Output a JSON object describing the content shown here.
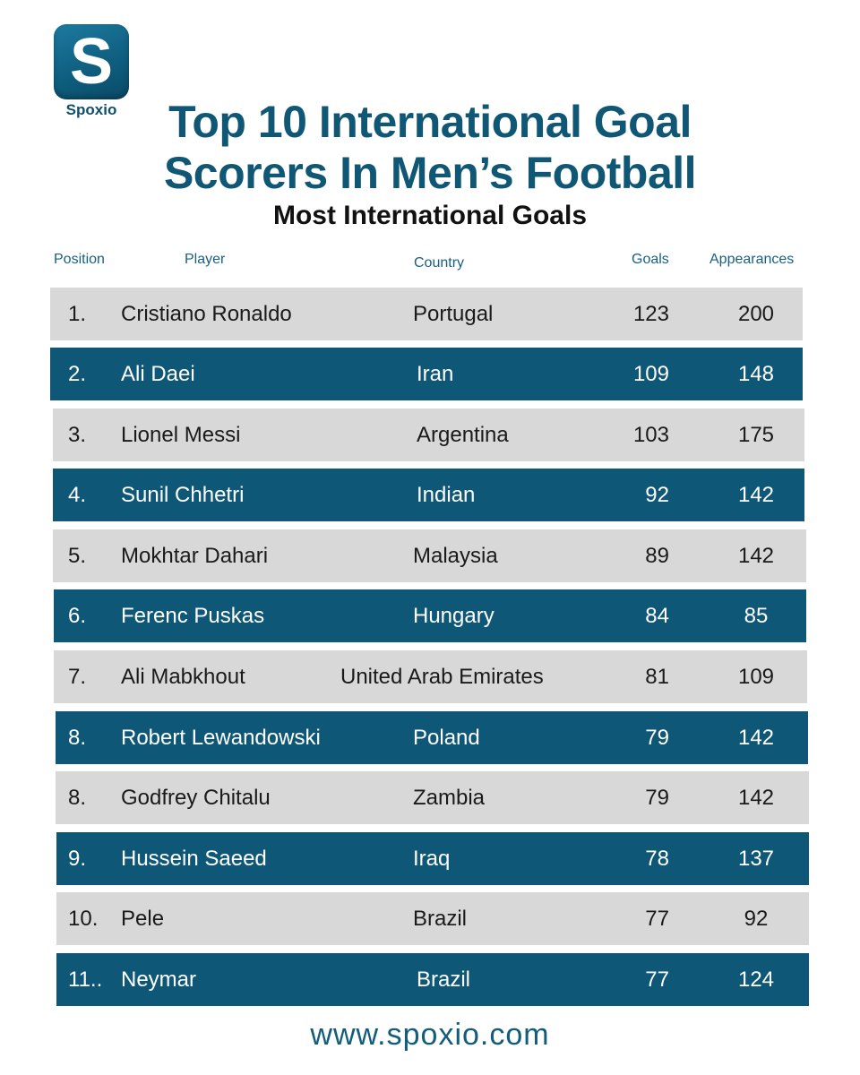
{
  "brand": {
    "logo_letter": "S",
    "name": "Spoxio"
  },
  "title": {
    "line1": "Top 10 International Goal",
    "line2": "Scorers In Men’s Football"
  },
  "subtitle": "Most International Goals",
  "columns": {
    "position": "Position",
    "player": "Player",
    "country": "Country",
    "goals": "Goals",
    "appearances": "Appearances"
  },
  "rows": [
    {
      "position": "1.",
      "player": "Cristiano Ronaldo",
      "country": "Portugal",
      "goals": "123",
      "appearances": "200"
    },
    {
      "position": "2.",
      "player": "Ali Daei",
      "country": "Iran",
      "goals": "109",
      "appearances": "148"
    },
    {
      "position": "3.",
      "player": "Lionel Messi",
      "country": "Argentina",
      "goals": "103",
      "appearances": "175"
    },
    {
      "position": "4.",
      "player": "Sunil Chhetri",
      "country": "Indian",
      "goals": "92",
      "appearances": "142"
    },
    {
      "position": "5.",
      "player": "Mokhtar Dahari",
      "country": "Malaysia",
      "goals": "89",
      "appearances": "142"
    },
    {
      "position": "6.",
      "player": "Ferenc Puskas",
      "country": "Hungary",
      "goals": "84",
      "appearances": "85"
    },
    {
      "position": "7.",
      "player": "Ali Mabkhout",
      "country": "United Arab Emirates",
      "goals": "81",
      "appearances": "109"
    },
    {
      "position": "8.",
      "player": "Robert Lewandowski",
      "country": "Poland",
      "goals": "79",
      "appearances": "142"
    },
    {
      "position": "8.",
      "player": "Godfrey Chitalu",
      "country": "Zambia",
      "goals": "79",
      "appearances": "142"
    },
    {
      "position": "9.",
      "player": "Hussein Saeed",
      "country": "Iraq",
      "goals": "78",
      "appearances": "137"
    },
    {
      "position": "10.",
      "player": "Pele",
      "country": "Brazil",
      "goals": "77",
      "appearances": "92"
    },
    {
      "position": "11..",
      "player": "Neymar",
      "country": "Brazil",
      "goals": "77",
      "appearances": "124"
    }
  ],
  "footer": "www.spoxio.com",
  "colors": {
    "dark_row": "#0e5777",
    "light_row": "#d8d8d8",
    "title": "#0f5775"
  }
}
